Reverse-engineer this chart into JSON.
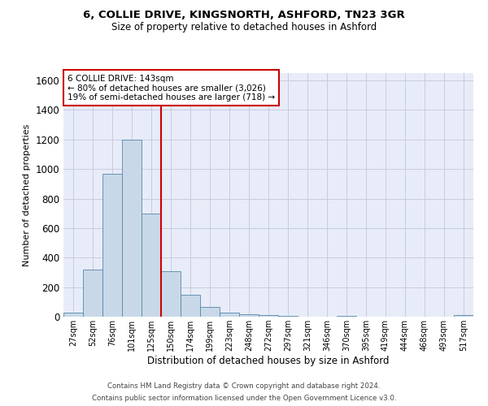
{
  "title_line1": "6, COLLIE DRIVE, KINGSNORTH, ASHFORD, TN23 3GR",
  "title_line2": "Size of property relative to detached houses in Ashford",
  "xlabel": "Distribution of detached houses by size in Ashford",
  "ylabel": "Number of detached properties",
  "categories": [
    "27sqm",
    "52sqm",
    "76sqm",
    "101sqm",
    "125sqm",
    "150sqm",
    "174sqm",
    "199sqm",
    "223sqm",
    "248sqm",
    "272sqm",
    "297sqm",
    "321sqm",
    "346sqm",
    "370sqm",
    "395sqm",
    "419sqm",
    "444sqm",
    "468sqm",
    "493sqm",
    "517sqm"
  ],
  "values": [
    25,
    320,
    970,
    1200,
    700,
    310,
    150,
    65,
    25,
    15,
    12,
    5,
    0,
    0,
    8,
    0,
    0,
    0,
    0,
    0,
    10
  ],
  "bar_color": "#c8d8e8",
  "bar_edge_color": "#5588aa",
  "vline_x": 4.5,
  "vline_color": "#cc0000",
  "annotation_box_text": "6 COLLIE DRIVE: 143sqm\n← 80% of detached houses are smaller (3,026)\n19% of semi-detached houses are larger (718) →",
  "annotation_box_color": "#cc0000",
  "annotation_box_bg": "#ffffff",
  "grid_color": "#c8cce0",
  "background_color": "#e8ecf8",
  "ylim": [
    0,
    1650
  ],
  "yticks": [
    0,
    200,
    400,
    600,
    800,
    1000,
    1200,
    1400,
    1600
  ],
  "footer_line1": "Contains HM Land Registry data © Crown copyright and database right 2024.",
  "footer_line2": "Contains public sector information licensed under the Open Government Licence v3.0."
}
